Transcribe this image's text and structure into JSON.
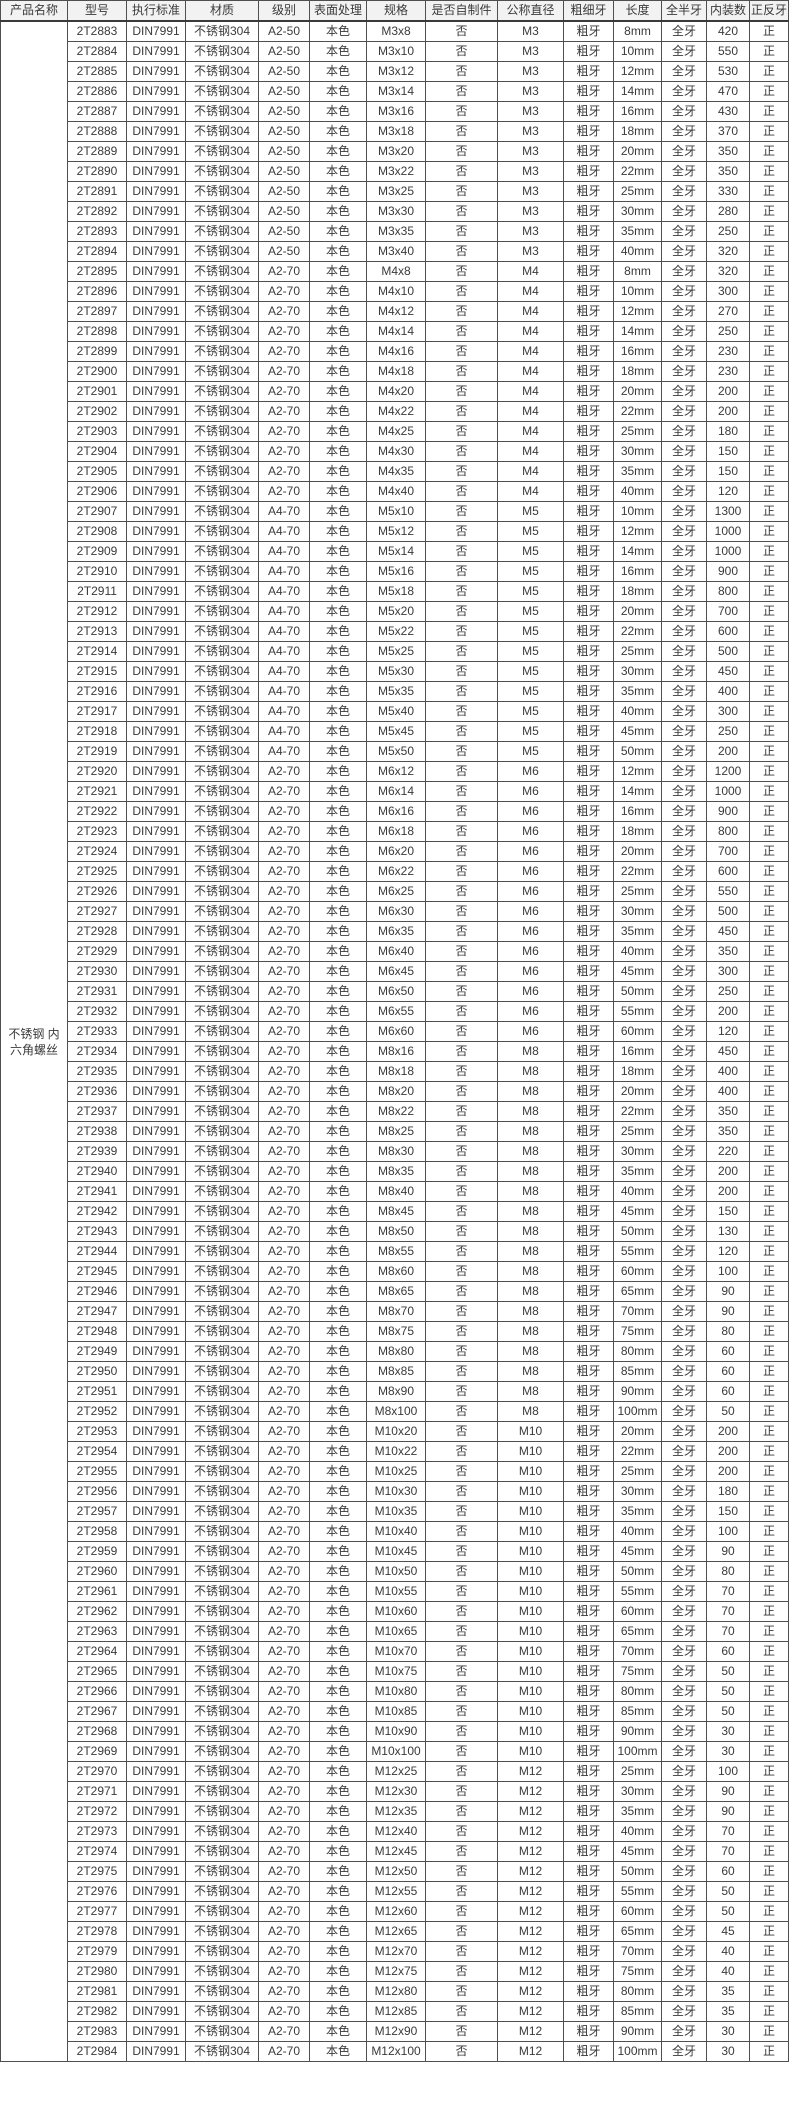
{
  "colors": {
    "page_bg": "#ffffff",
    "header_bg": "#f2f2f2",
    "border": "#4f4f4f",
    "text": "#3a3a3a"
  },
  "table": {
    "columns": [
      "产品名称",
      "型号",
      "执行标准",
      "材质",
      "级别",
      "表面处理",
      "规格",
      "是否自制件",
      "公称直径",
      "粗细牙",
      "长度",
      "全半牙",
      "内装数",
      "正反牙"
    ],
    "product_name": "不锈钢 内六角螺丝",
    "constants": {
      "standard": "DIN7991",
      "material": "不锈钢304",
      "surface": "本色",
      "self_made": "否",
      "thread": "粗牙",
      "full_thread": "全牙",
      "direction": "正"
    },
    "rows": [
      [
        "2T2883",
        "A2-50",
        "M3x8",
        "M3",
        "8mm",
        "420"
      ],
      [
        "2T2884",
        "A2-50",
        "M3x10",
        "M3",
        "10mm",
        "550"
      ],
      [
        "2T2885",
        "A2-50",
        "M3x12",
        "M3",
        "12mm",
        "530"
      ],
      [
        "2T2886",
        "A2-50",
        "M3x14",
        "M3",
        "14mm",
        "470"
      ],
      [
        "2T2887",
        "A2-50",
        "M3x16",
        "M3",
        "16mm",
        "430"
      ],
      [
        "2T2888",
        "A2-50",
        "M3x18",
        "M3",
        "18mm",
        "370"
      ],
      [
        "2T2889",
        "A2-50",
        "M3x20",
        "M3",
        "20mm",
        "350"
      ],
      [
        "2T2890",
        "A2-50",
        "M3x22",
        "M3",
        "22mm",
        "350"
      ],
      [
        "2T2891",
        "A2-50",
        "M3x25",
        "M3",
        "25mm",
        "330"
      ],
      [
        "2T2892",
        "A2-50",
        "M3x30",
        "M3",
        "30mm",
        "280"
      ],
      [
        "2T2893",
        "A2-50",
        "M3x35",
        "M3",
        "35mm",
        "250"
      ],
      [
        "2T2894",
        "A2-50",
        "M3x40",
        "M3",
        "40mm",
        "320"
      ],
      [
        "2T2895",
        "A2-70",
        "M4x8",
        "M4",
        "8mm",
        "320"
      ],
      [
        "2T2896",
        "A2-70",
        "M4x10",
        "M4",
        "10mm",
        "300"
      ],
      [
        "2T2897",
        "A2-70",
        "M4x12",
        "M4",
        "12mm",
        "270"
      ],
      [
        "2T2898",
        "A2-70",
        "M4x14",
        "M4",
        "14mm",
        "250"
      ],
      [
        "2T2899",
        "A2-70",
        "M4x16",
        "M4",
        "16mm",
        "230"
      ],
      [
        "2T2900",
        "A2-70",
        "M4x18",
        "M4",
        "18mm",
        "230"
      ],
      [
        "2T2901",
        "A2-70",
        "M4x20",
        "M4",
        "20mm",
        "200"
      ],
      [
        "2T2902",
        "A2-70",
        "M4x22",
        "M4",
        "22mm",
        "200"
      ],
      [
        "2T2903",
        "A2-70",
        "M4x25",
        "M4",
        "25mm",
        "180"
      ],
      [
        "2T2904",
        "A2-70",
        "M4x30",
        "M4",
        "30mm",
        "150"
      ],
      [
        "2T2905",
        "A2-70",
        "M4x35",
        "M4",
        "35mm",
        "150"
      ],
      [
        "2T2906",
        "A2-70",
        "M4x40",
        "M4",
        "40mm",
        "120"
      ],
      [
        "2T2907",
        "A4-70",
        "M5x10",
        "M5",
        "10mm",
        "1300"
      ],
      [
        "2T2908",
        "A4-70",
        "M5x12",
        "M5",
        "12mm",
        "1000"
      ],
      [
        "2T2909",
        "A4-70",
        "M5x14",
        "M5",
        "14mm",
        "1000"
      ],
      [
        "2T2910",
        "A4-70",
        "M5x16",
        "M5",
        "16mm",
        "900"
      ],
      [
        "2T2911",
        "A4-70",
        "M5x18",
        "M5",
        "18mm",
        "800"
      ],
      [
        "2T2912",
        "A4-70",
        "M5x20",
        "M5",
        "20mm",
        "700"
      ],
      [
        "2T2913",
        "A4-70",
        "M5x22",
        "M5",
        "22mm",
        "600"
      ],
      [
        "2T2914",
        "A4-70",
        "M5x25",
        "M5",
        "25mm",
        "500"
      ],
      [
        "2T2915",
        "A4-70",
        "M5x30",
        "M5",
        "30mm",
        "450"
      ],
      [
        "2T2916",
        "A4-70",
        "M5x35",
        "M5",
        "35mm",
        "400"
      ],
      [
        "2T2917",
        "A4-70",
        "M5x40",
        "M5",
        "40mm",
        "300"
      ],
      [
        "2T2918",
        "A4-70",
        "M5x45",
        "M5",
        "45mm",
        "250"
      ],
      [
        "2T2919",
        "A4-70",
        "M5x50",
        "M5",
        "50mm",
        "200"
      ],
      [
        "2T2920",
        "A2-70",
        "M6x12",
        "M6",
        "12mm",
        "1200"
      ],
      [
        "2T2921",
        "A2-70",
        "M6x14",
        "M6",
        "14mm",
        "1000"
      ],
      [
        "2T2922",
        "A2-70",
        "M6x16",
        "M6",
        "16mm",
        "900"
      ],
      [
        "2T2923",
        "A2-70",
        "M6x18",
        "M6",
        "18mm",
        "800"
      ],
      [
        "2T2924",
        "A2-70",
        "M6x20",
        "M6",
        "20mm",
        "700"
      ],
      [
        "2T2925",
        "A2-70",
        "M6x22",
        "M6",
        "22mm",
        "600"
      ],
      [
        "2T2926",
        "A2-70",
        "M6x25",
        "M6",
        "25mm",
        "550"
      ],
      [
        "2T2927",
        "A2-70",
        "M6x30",
        "M6",
        "30mm",
        "500"
      ],
      [
        "2T2928",
        "A2-70",
        "M6x35",
        "M6",
        "35mm",
        "450"
      ],
      [
        "2T2929",
        "A2-70",
        "M6x40",
        "M6",
        "40mm",
        "350"
      ],
      [
        "2T2930",
        "A2-70",
        "M6x45",
        "M6",
        "45mm",
        "300"
      ],
      [
        "2T2931",
        "A2-70",
        "M6x50",
        "M6",
        "50mm",
        "250"
      ],
      [
        "2T2932",
        "A2-70",
        "M6x55",
        "M6",
        "55mm",
        "200"
      ],
      [
        "2T2933",
        "A2-70",
        "M6x60",
        "M6",
        "60mm",
        "120"
      ],
      [
        "2T2934",
        "A2-70",
        "M8x16",
        "M8",
        "16mm",
        "450"
      ],
      [
        "2T2935",
        "A2-70",
        "M8x18",
        "M8",
        "18mm",
        "400"
      ],
      [
        "2T2936",
        "A2-70",
        "M8x20",
        "M8",
        "20mm",
        "400"
      ],
      [
        "2T2937",
        "A2-70",
        "M8x22",
        "M8",
        "22mm",
        "350"
      ],
      [
        "2T2938",
        "A2-70",
        "M8x25",
        "M8",
        "25mm",
        "350"
      ],
      [
        "2T2939",
        "A2-70",
        "M8x30",
        "M8",
        "30mm",
        "220"
      ],
      [
        "2T2940",
        "A2-70",
        "M8x35",
        "M8",
        "35mm",
        "200"
      ],
      [
        "2T2941",
        "A2-70",
        "M8x40",
        "M8",
        "40mm",
        "200"
      ],
      [
        "2T2942",
        "A2-70",
        "M8x45",
        "M8",
        "45mm",
        "150"
      ],
      [
        "2T2943",
        "A2-70",
        "M8x50",
        "M8",
        "50mm",
        "130"
      ],
      [
        "2T2944",
        "A2-70",
        "M8x55",
        "M8",
        "55mm",
        "120"
      ],
      [
        "2T2945",
        "A2-70",
        "M8x60",
        "M8",
        "60mm",
        "100"
      ],
      [
        "2T2946",
        "A2-70",
        "M8x65",
        "M8",
        "65mm",
        "90"
      ],
      [
        "2T2947",
        "A2-70",
        "M8x70",
        "M8",
        "70mm",
        "90"
      ],
      [
        "2T2948",
        "A2-70",
        "M8x75",
        "M8",
        "75mm",
        "80"
      ],
      [
        "2T2949",
        "A2-70",
        "M8x80",
        "M8",
        "80mm",
        "60"
      ],
      [
        "2T2950",
        "A2-70",
        "M8x85",
        "M8",
        "85mm",
        "60"
      ],
      [
        "2T2951",
        "A2-70",
        "M8x90",
        "M8",
        "90mm",
        "60"
      ],
      [
        "2T2952",
        "A2-70",
        "M8x100",
        "M8",
        "100mm",
        "50"
      ],
      [
        "2T2953",
        "A2-70",
        "M10x20",
        "M10",
        "20mm",
        "200"
      ],
      [
        "2T2954",
        "A2-70",
        "M10x22",
        "M10",
        "22mm",
        "200"
      ],
      [
        "2T2955",
        "A2-70",
        "M10x25",
        "M10",
        "25mm",
        "200"
      ],
      [
        "2T2956",
        "A2-70",
        "M10x30",
        "M10",
        "30mm",
        "180"
      ],
      [
        "2T2957",
        "A2-70",
        "M10x35",
        "M10",
        "35mm",
        "150"
      ],
      [
        "2T2958",
        "A2-70",
        "M10x40",
        "M10",
        "40mm",
        "100"
      ],
      [
        "2T2959",
        "A2-70",
        "M10x45",
        "M10",
        "45mm",
        "90"
      ],
      [
        "2T2960",
        "A2-70",
        "M10x50",
        "M10",
        "50mm",
        "80"
      ],
      [
        "2T2961",
        "A2-70",
        "M10x55",
        "M10",
        "55mm",
        "70"
      ],
      [
        "2T2962",
        "A2-70",
        "M10x60",
        "M10",
        "60mm",
        "70"
      ],
      [
        "2T2963",
        "A2-70",
        "M10x65",
        "M10",
        "65mm",
        "70"
      ],
      [
        "2T2964",
        "A2-70",
        "M10x70",
        "M10",
        "70mm",
        "60"
      ],
      [
        "2T2965",
        "A2-70",
        "M10x75",
        "M10",
        "75mm",
        "50"
      ],
      [
        "2T2966",
        "A2-70",
        "M10x80",
        "M10",
        "80mm",
        "50"
      ],
      [
        "2T2967",
        "A2-70",
        "M10x85",
        "M10",
        "85mm",
        "50"
      ],
      [
        "2T2968",
        "A2-70",
        "M10x90",
        "M10",
        "90mm",
        "30"
      ],
      [
        "2T2969",
        "A2-70",
        "M10x100",
        "M10",
        "100mm",
        "30"
      ],
      [
        "2T2970",
        "A2-70",
        "M12x25",
        "M12",
        "25mm",
        "100"
      ],
      [
        "2T2971",
        "A2-70",
        "M12x30",
        "M12",
        "30mm",
        "90"
      ],
      [
        "2T2972",
        "A2-70",
        "M12x35",
        "M12",
        "35mm",
        "90"
      ],
      [
        "2T2973",
        "A2-70",
        "M12x40",
        "M12",
        "40mm",
        "70"
      ],
      [
        "2T2974",
        "A2-70",
        "M12x45",
        "M12",
        "45mm",
        "70"
      ],
      [
        "2T2975",
        "A2-70",
        "M12x50",
        "M12",
        "50mm",
        "60"
      ],
      [
        "2T2976",
        "A2-70",
        "M12x55",
        "M12",
        "55mm",
        "50"
      ],
      [
        "2T2977",
        "A2-70",
        "M12x60",
        "M12",
        "60mm",
        "50"
      ],
      [
        "2T2978",
        "A2-70",
        "M12x65",
        "M12",
        "65mm",
        "45"
      ],
      [
        "2T2979",
        "A2-70",
        "M12x70",
        "M12",
        "70mm",
        "40"
      ],
      [
        "2T2980",
        "A2-70",
        "M12x75",
        "M12",
        "75mm",
        "40"
      ],
      [
        "2T2981",
        "A2-70",
        "M12x80",
        "M12",
        "80mm",
        "35"
      ],
      [
        "2T2982",
        "A2-70",
        "M12x85",
        "M12",
        "85mm",
        "35"
      ],
      [
        "2T2983",
        "A2-70",
        "M12x90",
        "M12",
        "90mm",
        "30"
      ],
      [
        "2T2984",
        "A2-70",
        "M12x100",
        "M12",
        "100mm",
        "30"
      ]
    ]
  }
}
